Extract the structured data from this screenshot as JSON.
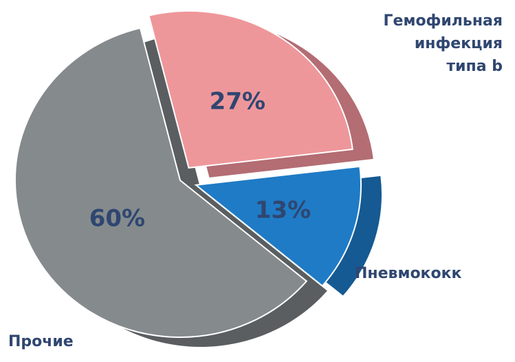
{
  "chart_data": {
    "type": "pie",
    "title": "",
    "slices": [
      {
        "label": "Гемофильная\nинфекция\nтипа b",
        "value": 27,
        "value_label": "27%",
        "color": "#ee979b",
        "side_color": "#b36d73"
      },
      {
        "label": "Пневмококк",
        "value": 13,
        "value_label": "13%",
        "color": "#1f7bc6",
        "side_color": "#155a93"
      },
      {
        "label": "Прочие",
        "value": 60,
        "value_label": "60%",
        "color": "#858a8d",
        "side_color": "#5a5e61"
      }
    ],
    "style": "3d-exploded"
  }
}
